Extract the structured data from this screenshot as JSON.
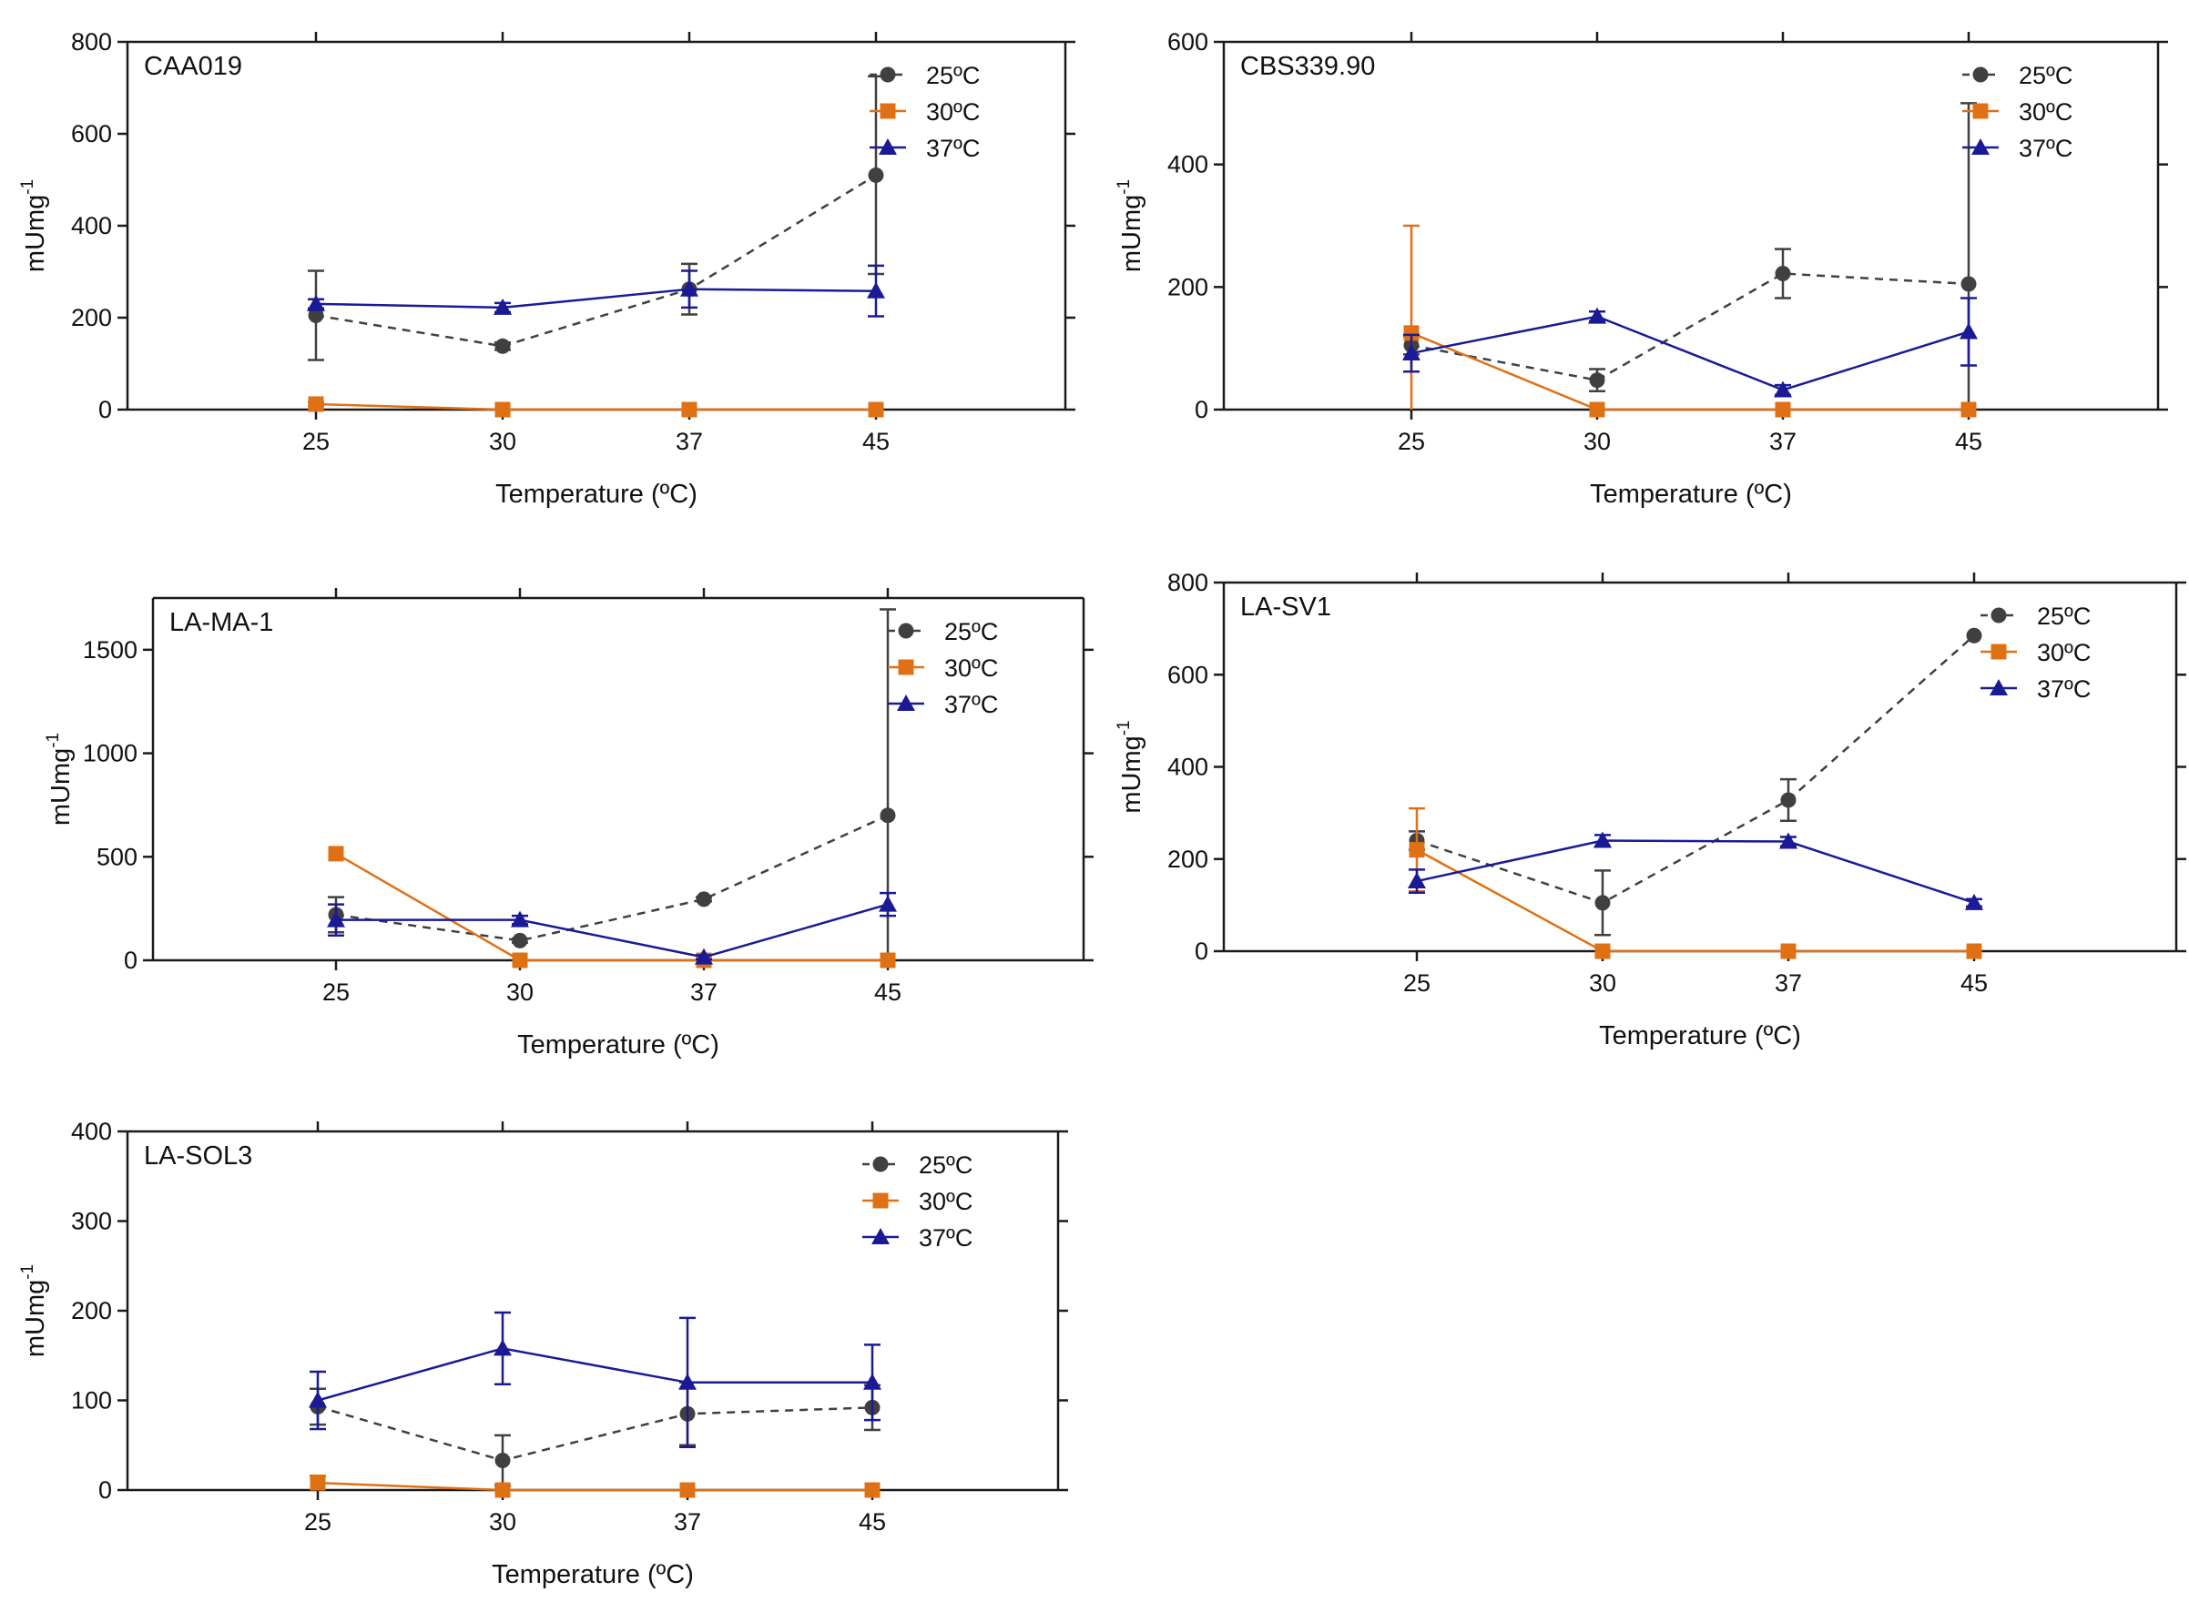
{
  "colors": {
    "s25": "#404040",
    "s30": "#e07014",
    "s37": "#1a1a96",
    "axis": "#1a1a1a"
  },
  "chart_data": [
    {
      "type": "line",
      "title": "CAA019",
      "xlabel": "Temperature (ºC)",
      "ylabel": "mUmg",
      "ylabel_sup": "-1",
      "categories": [
        "25",
        "30",
        "37",
        "45"
      ],
      "ylim": [
        0,
        800
      ],
      "yticks": [
        "0",
        "200",
        "400",
        "600",
        "800"
      ],
      "legend_position": "top-right",
      "series": [
        {
          "name": "25ºC",
          "values": [
            205,
            138,
            262,
            510
          ],
          "errors": [
            97,
            8,
            55,
            215
          ]
        },
        {
          "name": "30ºC",
          "values": [
            12,
            0,
            0,
            0
          ],
          "errors": [
            4,
            0,
            0,
            0
          ]
        },
        {
          "name": "37ºC",
          "values": [
            230,
            222,
            262,
            258
          ],
          "errors": [
            10,
            10,
            40,
            55
          ]
        }
      ]
    },
    {
      "type": "line",
      "title": "CBS339.90",
      "xlabel": "Temperature (ºC)",
      "ylabel": "mUmg",
      "ylabel_sup": "-1",
      "categories": [
        "25",
        "30",
        "37",
        "45"
      ],
      "ylim": [
        0,
        600
      ],
      "yticks": [
        "0",
        "200",
        "400",
        "600"
      ],
      "legend_position": "top-right",
      "series": [
        {
          "name": "25ºC",
          "values": [
            105,
            48,
            222,
            205
          ],
          "errors": [
            15,
            18,
            40,
            295
          ]
        },
        {
          "name": "30ºC",
          "values": [
            125,
            0,
            0,
            0
          ],
          "errors": [
            175,
            0,
            0,
            0
          ]
        },
        {
          "name": "37ºC",
          "values": [
            92,
            152,
            32,
            127
          ],
          "errors": [
            30,
            8,
            8,
            55
          ]
        }
      ]
    },
    {
      "type": "line",
      "title": "LA-MA-1",
      "xlabel": "Temperature (ºC)",
      "ylabel": "mUmg",
      "ylabel_sup": "-1",
      "categories": [
        "25",
        "30",
        "37",
        "45"
      ],
      "ylim": [
        0,
        1750
      ],
      "yticks": [
        "0",
        "500",
        "1000",
        "1500"
      ],
      "legend_position": "top-right",
      "series": [
        {
          "name": "25ºC",
          "values": [
            220,
            95,
            295,
            700
          ],
          "errors": [
            85,
            10,
            10,
            995
          ]
        },
        {
          "name": "30ºC",
          "values": [
            515,
            0,
            0,
            0
          ],
          "errors": [
            0,
            0,
            0,
            0
          ]
        },
        {
          "name": "37ºC",
          "values": [
            195,
            195,
            15,
            270
          ],
          "errors": [
            75,
            20,
            10,
            55
          ]
        }
      ]
    },
    {
      "type": "line",
      "title": "LA-SV1",
      "xlabel": "Temperature (ºC)",
      "ylabel": "mUmg",
      "ylabel_sup": "-1",
      "categories": [
        "25",
        "30",
        "37",
        "45"
      ],
      "ylim": [
        0,
        800
      ],
      "yticks": [
        "0",
        "200",
        "400",
        "600",
        "800"
      ],
      "legend_position": "top-right",
      "series": [
        {
          "name": "25ºC",
          "values": [
            240,
            105,
            328,
            685
          ],
          "errors": [
            20,
            70,
            45,
            0
          ]
        },
        {
          "name": "30ºC",
          "values": [
            220,
            0,
            0,
            0
          ],
          "errors": [
            90,
            0,
            0,
            0
          ]
        },
        {
          "name": "37ºC",
          "values": [
            152,
            240,
            238,
            105
          ],
          "errors": [
            25,
            12,
            10,
            8
          ]
        }
      ]
    },
    {
      "type": "line",
      "title": "LA-SOL3",
      "xlabel": "Temperature (ºC)",
      "ylabel": "mUmg",
      "ylabel_sup": "-1",
      "categories": [
        "25",
        "30",
        "37",
        "45"
      ],
      "ylim": [
        0,
        400
      ],
      "yticks": [
        "0",
        "100",
        "200",
        "300",
        "400"
      ],
      "legend_position": "top-right",
      "series": [
        {
          "name": "25ºC",
          "values": [
            93,
            33,
            85,
            92
          ],
          "errors": [
            20,
            28,
            35,
            25
          ]
        },
        {
          "name": "30ºC",
          "values": [
            8,
            0,
            0,
            0
          ],
          "errors": [
            8,
            0,
            0,
            0
          ]
        },
        {
          "name": "37ºC",
          "values": [
            100,
            158,
            120,
            120
          ],
          "errors": [
            32,
            40,
            72,
            42
          ]
        }
      ]
    }
  ]
}
